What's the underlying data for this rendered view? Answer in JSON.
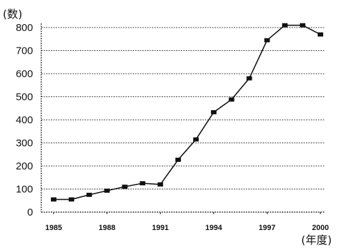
{
  "chart_data": {
    "type": "line",
    "ylabel": "(数)",
    "xlabel": "(年度)",
    "ylim": [
      0,
      800
    ],
    "yticks": [
      0,
      100,
      200,
      300,
      400,
      500,
      600,
      700,
      800
    ],
    "xlim": [
      1985,
      2000
    ],
    "xtick_labels": [
      "1985",
      "1988",
      "1991",
      "1994",
      "1997",
      "2000"
    ],
    "grid": true,
    "legend": "none",
    "series": [
      {
        "x": [
          1985,
          1986,
          1987,
          1988,
          1989,
          1990,
          1991,
          1992,
          1993,
          1994,
          1995,
          1996,
          1997,
          1998,
          1999,
          2000
        ],
        "values": [
          55,
          55,
          75,
          93,
          110,
          125,
          120,
          227,
          315,
          433,
          488,
          580,
          745,
          810,
          810,
          770
        ]
      }
    ],
    "colors": {
      "line": "#111111",
      "marker": "#111111",
      "grid": "#444444"
    }
  }
}
